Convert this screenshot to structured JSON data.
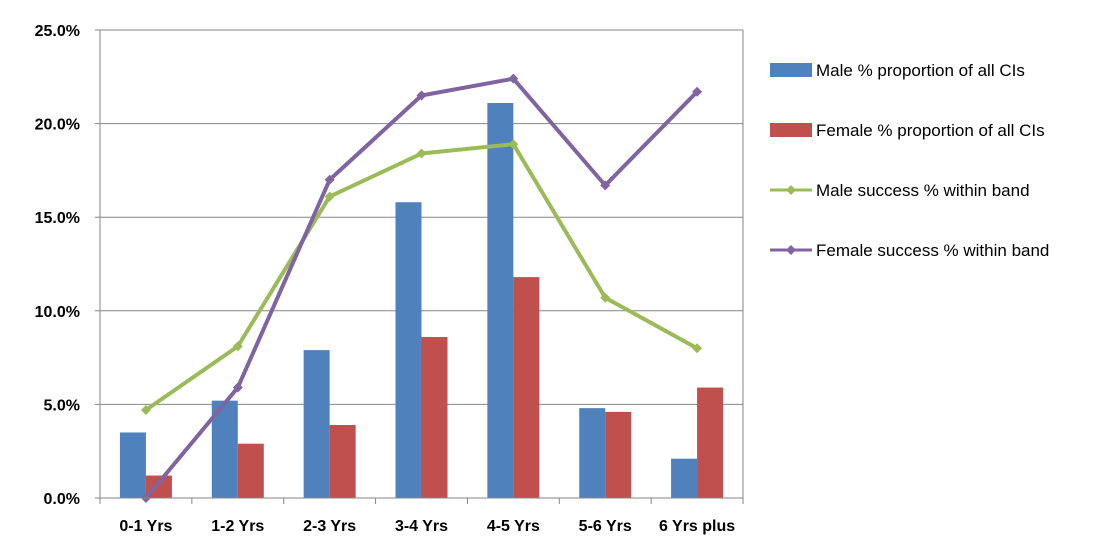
{
  "chart_data": {
    "type": "bar",
    "categories": [
      "0-1 Yrs",
      "1-2 Yrs",
      "2-3 Yrs",
      "3-4 Yrs",
      "4-5 Yrs",
      "5-6 Yrs",
      "6 Yrs plus"
    ],
    "ylim": [
      0,
      25
    ],
    "y_ticks": [
      0,
      5,
      10,
      15,
      20,
      25
    ],
    "y_tick_labels": [
      "0.0%",
      "5.0%",
      "10.0%",
      "15.0%",
      "20.0%",
      "25.0%"
    ],
    "grid": true,
    "legend_position": "right",
    "series": [
      {
        "name": "Male % proportion of all CIs",
        "kind": "bar",
        "color": "#4F81BD",
        "values": [
          3.5,
          5.2,
          7.9,
          15.8,
          21.1,
          4.8,
          2.1
        ]
      },
      {
        "name": "Female % proportion of all CIs",
        "kind": "bar",
        "color": "#C0504D",
        "values": [
          1.2,
          2.9,
          3.9,
          8.6,
          11.8,
          4.6,
          5.9
        ]
      },
      {
        "name": "Male success % within band",
        "kind": "line",
        "color": "#9BBB59",
        "values": [
          4.7,
          8.1,
          16.1,
          18.4,
          18.9,
          10.7,
          8.0
        ]
      },
      {
        "name": "Female success % within band",
        "kind": "line",
        "color": "#8064A2",
        "values": [
          0.0,
          5.9,
          17.0,
          21.5,
          22.4,
          16.7,
          21.7
        ]
      }
    ]
  }
}
